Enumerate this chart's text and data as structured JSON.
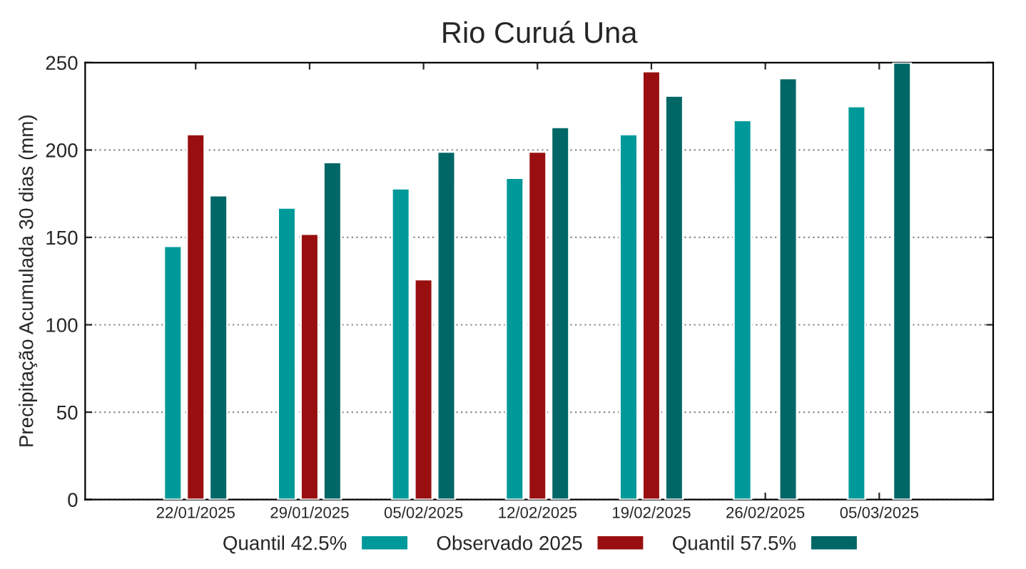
{
  "chart_data": {
    "type": "bar",
    "title": "Rio Curuá Una",
    "ylabel": "Precipitação Acumulada 30 dias (mm)",
    "categories": [
      "22/01/2025",
      "29/01/2025",
      "05/02/2025",
      "12/02/2025",
      "19/02/2025",
      "26/02/2025",
      "05/03/2025"
    ],
    "series": [
      {
        "name": "Quantil 42.5%",
        "color": "#009999",
        "values": [
          145,
          167,
          178,
          184,
          209,
          217,
          225
        ]
      },
      {
        "name": "Observado 2025",
        "color": "#990f0f",
        "values": [
          209,
          152,
          126,
          199,
          245,
          null,
          null
        ]
      },
      {
        "name": "Quantil 57.5%",
        "color": "#006666",
        "values": [
          174,
          193,
          199,
          213,
          231,
          241,
          250
        ]
      }
    ],
    "ylim": [
      0,
      250
    ],
    "yticks": [
      0,
      50,
      100,
      150,
      200,
      250
    ],
    "grid": "y",
    "legend": "bottom"
  }
}
